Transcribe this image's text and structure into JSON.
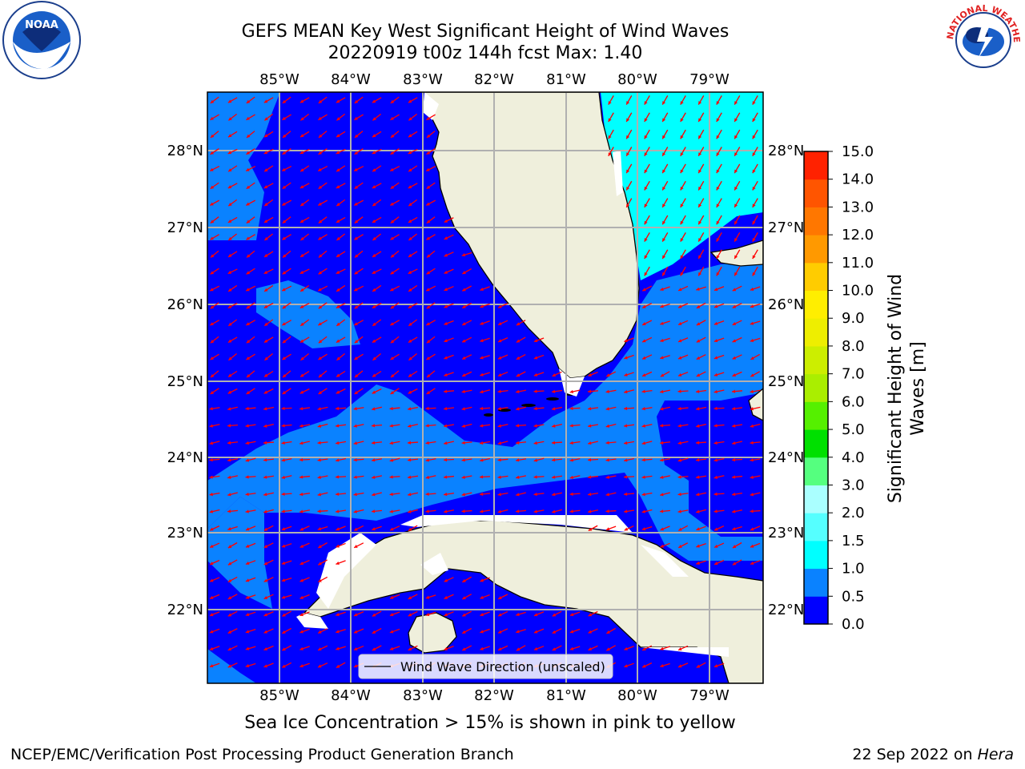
{
  "title": {
    "line1": "GEFS MEAN Key West Significant Height of Wind Waves",
    "line2": "20220919 t00z 144h fcst   Max: 1.40"
  },
  "subtitle": "Sea Ice Concentration > 15% is shown in pink to yellow",
  "footer": {
    "left": "NCEP/EMC/Verification Post Processing Product Generation Branch",
    "date": "22 Sep 2022 on",
    "host": "Hera"
  },
  "logos": {
    "noaa": {
      "text": "NOAA"
    },
    "nws": {
      "text": "NATIONAL WEATHER SERVICE"
    }
  },
  "map": {
    "lon_ticks": [
      "85°W",
      "84°W",
      "83°W",
      "82°W",
      "81°W",
      "80°W",
      "79°W"
    ],
    "lat_ticks": [
      "28°N",
      "27°N",
      "26°N",
      "25°N",
      "24°N",
      "23°N",
      "22°N"
    ],
    "legend": "Wind Wave Direction (unscaled)",
    "colors": {
      "ocean_low": "#0000ff",
      "ocean_mid": "#0a82ff",
      "ocean_high": "#00ffff",
      "land": "#efefdc",
      "arrows": "#ff0000",
      "grid": "#b0b0b0"
    }
  },
  "colorbar": {
    "label": "Significant Height of Wind Waves [m]",
    "ticks": [
      "0.0",
      "0.5",
      "1.0",
      "1.5",
      "2.0",
      "3.0",
      "4.0",
      "5.0",
      "6.0",
      "7.0",
      "8.0",
      "9.0",
      "10.0",
      "11.0",
      "12.0",
      "13.0",
      "14.0",
      "15.0"
    ],
    "colors": [
      "#0000ff",
      "#0a82ff",
      "#00ffff",
      "#55ffff",
      "#aaffff",
      "#55ff7f",
      "#00e000",
      "#55f000",
      "#aaee00",
      "#ccee00",
      "#eeee00",
      "#ffee00",
      "#ffcc00",
      "#ff9900",
      "#ff7700",
      "#ff5500",
      "#ff2200"
    ]
  }
}
